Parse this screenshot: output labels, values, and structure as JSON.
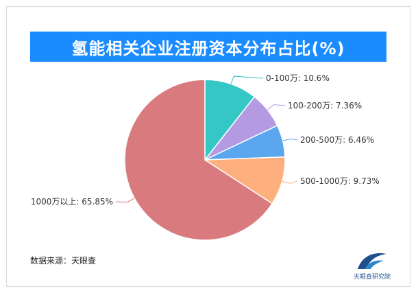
{
  "title": "氢能相关企业注册资本分布占比(%)",
  "source": "数据来源：天眼查",
  "logo": {
    "text": "天眼查研究院",
    "icon": "tianyancha-logo-icon",
    "color": "#1f4f8f"
  },
  "colors": {
    "title_bg": "#1a8cff",
    "title_text": "#ffffff"
  },
  "chart_data": {
    "type": "pie",
    "title": "氢能相关企业注册资本分布占比(%)",
    "start": "12 o'clock, clockwise",
    "legend": "none (callout labels beside slices)",
    "slices": [
      {
        "category": "0-100万",
        "value": 10.6,
        "label": "0-100万: 10.6%",
        "color": "#35c6c6"
      },
      {
        "category": "100-200万",
        "value": 7.36,
        "label": "100-200万: 7.36%",
        "color": "#b39ae3"
      },
      {
        "category": "200-500万",
        "value": 6.46,
        "label": "200-500万: 6.46%",
        "color": "#5aa7f0"
      },
      {
        "category": "500-1000万",
        "value": 9.73,
        "label": "500-1000万: 9.73%",
        "color": "#fdb07d"
      },
      {
        "category": "1000万以上",
        "value": 65.85,
        "label": "1000万以上: 65.85%",
        "color": "#d97b7e"
      }
    ]
  }
}
